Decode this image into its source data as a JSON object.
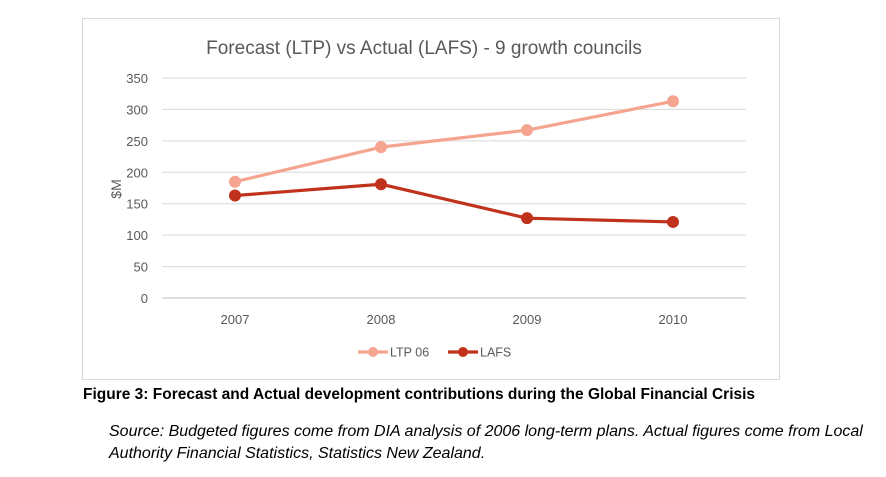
{
  "chart_data": {
    "type": "line",
    "title": "Forecast (LTP) vs Actual (LAFS) - 9 growth councils",
    "xlabel": "",
    "ylabel": "$M",
    "categories": [
      "2007",
      "2008",
      "2009",
      "2010"
    ],
    "ylim": [
      0,
      350
    ],
    "yticks": [
      "0",
      "50",
      "100",
      "150",
      "200",
      "250",
      "300",
      "350"
    ],
    "grid": true,
    "legend": "bottom",
    "series": [
      {
        "name": "LTP 06",
        "values": [
          185,
          240,
          267,
          313
        ],
        "color": "#f4a48f"
      },
      {
        "name": "LAFS",
        "values": [
          163,
          181,
          127,
          121
        ],
        "color": "#c0321c"
      }
    ]
  },
  "caption": "Figure 3: Forecast and Actual development contributions during the Global Financial Crisis",
  "source": "Source: Budgeted figures come from DIA analysis of 2006 long-term plans. Actual figures come from Local Authority Financial Statistics, Statistics New Zealand."
}
